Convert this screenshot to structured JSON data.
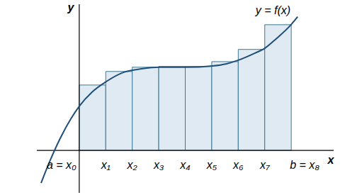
{
  "chart_data": {
    "type": "line",
    "x_label": "x",
    "y_label": "y",
    "annotations": [
      "y = f(x)"
    ],
    "series": [
      {
        "type": "line",
        "color": "#1f4e79",
        "x": [
          -1.44,
          -1.12,
          -0.72,
          -0.32,
          0,
          0.48,
          1.02,
          1.68,
          2.35,
          3.02,
          4.01,
          5.03,
          5.56,
          6.02,
          6.63,
          7.01,
          7.43,
          7.99,
          8.24
        ],
        "values": [
          -1.23,
          -0.43,
          0.45,
          1.18,
          1.66,
          2.19,
          2.59,
          2.94,
          3.07,
          3.13,
          3.13,
          3.18,
          3.26,
          3.4,
          3.66,
          3.85,
          4.2,
          4.73,
          5.03
        ]
      },
      {
        "type": "bar",
        "color": "#e0eaf2",
        "bins": [
          0,
          1,
          2,
          3,
          4,
          5,
          6,
          7,
          8
        ],
        "values": [
          2.46,
          2.97,
          3.13,
          3.16,
          3.16,
          3.34,
          3.8,
          4.73
        ]
      }
    ],
    "xlim": [
      -1.6,
      9.6
    ],
    "ylim": [
      -1.6,
      5.5
    ],
    "xticks": [
      {
        "value": 0,
        "label": "a = x₀"
      },
      {
        "value": 1,
        "label": "x₁"
      },
      {
        "value": 2,
        "label": "x₂"
      },
      {
        "value": 3,
        "label": "x₃"
      },
      {
        "value": 4,
        "label": "x₄"
      },
      {
        "value": 5,
        "label": "x₅"
      },
      {
        "value": 6,
        "label": "x₆"
      },
      {
        "value": 7,
        "label": "x₇"
      },
      {
        "value": 8,
        "label": "b = x₈"
      }
    ],
    "tick_labels": "x"
  }
}
